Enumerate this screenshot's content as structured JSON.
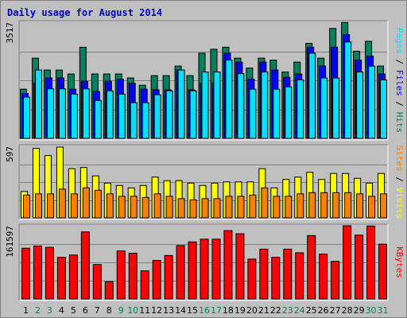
{
  "chart_data": {
    "type": "bar",
    "title": "Daily usage for August 2014",
    "categories": [
      "1",
      "2",
      "3",
      "4",
      "5",
      "6",
      "7",
      "8",
      "9",
      "10",
      "11",
      "12",
      "13",
      "14",
      "15",
      "16",
      "17",
      "18",
      "19",
      "20",
      "21",
      "22",
      "23",
      "24",
      "25",
      "26",
      "27",
      "28",
      "29",
      "30",
      "31"
    ],
    "weekend_days": [
      "2",
      "3",
      "9",
      "10",
      "16",
      "17",
      "23",
      "24",
      "30",
      "31"
    ],
    "colors": {
      "hits": "#00805c",
      "files": "#0000ff",
      "pages": "#00e0ff",
      "visits": "#ffff00",
      "sites": "#ff8000",
      "kbytes": "#ff0000",
      "weekday_label": "#000000",
      "weekend_label": "#00805c"
    },
    "panels": [
      {
        "name": "hits-files-pages",
        "ymax_label": "3517",
        "ylim": [
          0,
          3517
        ],
        "legend": [
          {
            "label": "Pages",
            "color": "#00e0ff"
          },
          {
            "label": "Files",
            "color": "#0000ff"
          },
          {
            "label": "Hits",
            "color": "#00805c"
          }
        ],
        "series": [
          {
            "name": "Hits",
            "color": "#00805c",
            "values": [
              1490,
              2430,
              2070,
              2070,
              1950,
              2760,
              1950,
              1950,
              1950,
              1830,
              1610,
              1900,
              1900,
              2190,
              1900,
              2580,
              2700,
              2760,
              2430,
              2130,
              2430,
              2370,
              2010,
              2310,
              2880,
              2430,
              3330,
              3510,
              2640,
              2940,
              2190
            ]
          },
          {
            "name": "Files",
            "color": "#0000ff",
            "values": [
              1360,
              1680,
              1830,
              1830,
              1490,
              1730,
              1420,
              1730,
              1790,
              1670,
              1490,
              1470,
              1470,
              2070,
              1470,
              1670,
              1670,
              2580,
              2310,
              1790,
              2310,
              2070,
              1850,
              1950,
              2760,
              2190,
              2760,
              3140,
              2370,
              2490,
              1950
            ]
          },
          {
            "name": "Pages",
            "color": "#00e0ff",
            "values": [
              1250,
              2070,
              1500,
              1500,
              1340,
              1500,
              1150,
              1440,
              1340,
              1080,
              1080,
              1320,
              1440,
              2070,
              1440,
              2010,
              2010,
              2370,
              1960,
              1490,
              2010,
              1490,
              1560,
              1770,
              2580,
              1830,
              1830,
              2920,
              2010,
              2190,
              1770
            ]
          }
        ]
      },
      {
        "name": "visits-sites",
        "ymax_label": "597",
        "ylim": [
          0,
          597
        ],
        "legend": [
          {
            "label": "Sites",
            "color": "#ff8000"
          },
          {
            "label": "Visits",
            "color": "#ffff00"
          }
        ],
        "series": [
          {
            "name": "Visits",
            "color": "#ffff00",
            "values": [
              220,
              580,
              520,
              590,
              410,
              420,
              350,
              290,
              270,
              250,
              270,
              340,
              310,
              310,
              290,
              270,
              290,
              300,
              300,
              300,
              410,
              250,
              320,
              340,
              380,
              320,
              370,
              370,
              330,
              290,
              370
            ]
          },
          {
            "name": "Sites",
            "color": "#ff8000",
            "values": [
              190,
              200,
              200,
              240,
              200,
              250,
              230,
              200,
              180,
              180,
              170,
              200,
              180,
              160,
              150,
              160,
              160,
              180,
              180,
              190,
              250,
              180,
              180,
              200,
              210,
              210,
              210,
              210,
              200,
              180,
              200
            ]
          }
        ]
      },
      {
        "name": "kbytes",
        "ymax_label": "161597",
        "ylim": [
          0,
          161597
        ],
        "legend": [
          {
            "label": "KBytes",
            "color": "#ff0000"
          }
        ],
        "series": [
          {
            "name": "KBytes",
            "color": "#ff0000",
            "values": [
              112000,
              117000,
              114000,
              92000,
              97000,
              148000,
              76000,
              38000,
              106000,
              101000,
              62000,
              85000,
              96000,
              118000,
              126000,
              132000,
              132000,
              151000,
              144000,
              88000,
              110000,
              92000,
              110000,
              102000,
              140000,
              99000,
              83000,
              164000,
              141000,
              161000,
              121000
            ]
          }
        ]
      }
    ]
  }
}
